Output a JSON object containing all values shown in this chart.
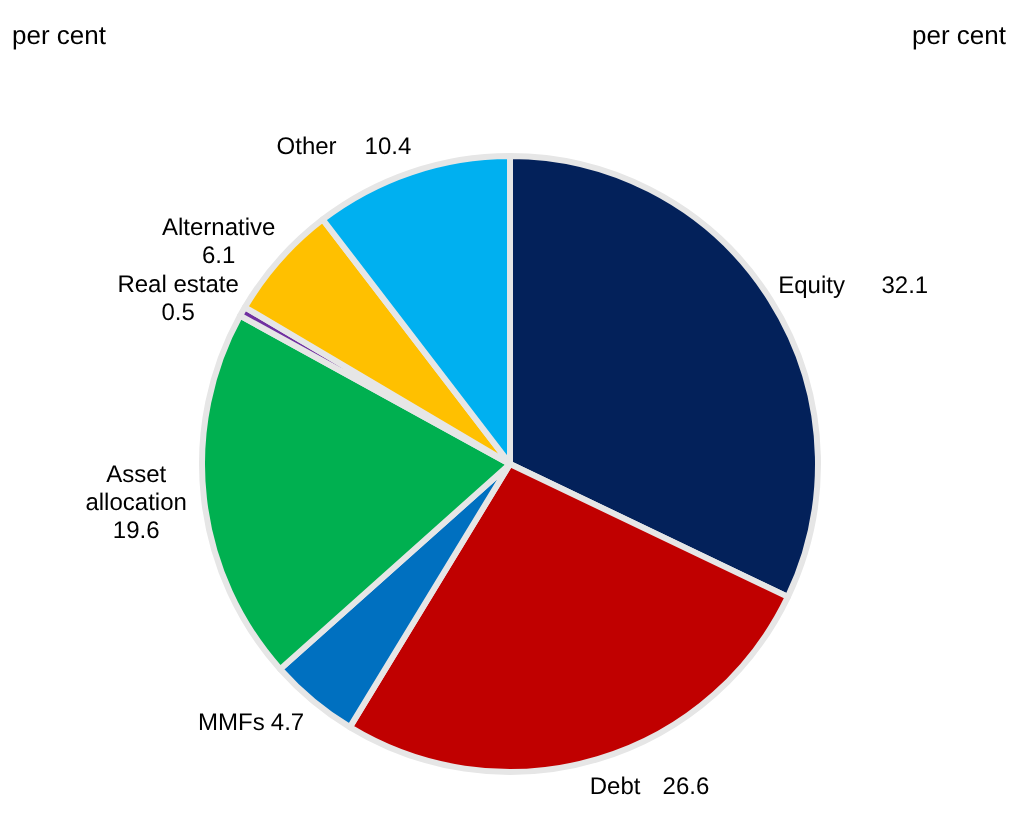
{
  "chart_data": {
    "type": "pie",
    "annotations": [
      "per cent",
      "per cent"
    ],
    "categories": [
      "Equity",
      "Debt",
      "MMFs",
      "Asset allocation",
      "Real estate",
      "Alternative",
      "Other"
    ],
    "values": [
      32.1,
      26.6,
      4.7,
      19.6,
      0.5,
      6.1,
      10.4
    ],
    "colors": [
      "#03215a",
      "#c00000",
      "#0070c0",
      "#00b050",
      "#7030a0",
      "#ffc000",
      "#00b0f0"
    ],
    "data_labels": true
  }
}
